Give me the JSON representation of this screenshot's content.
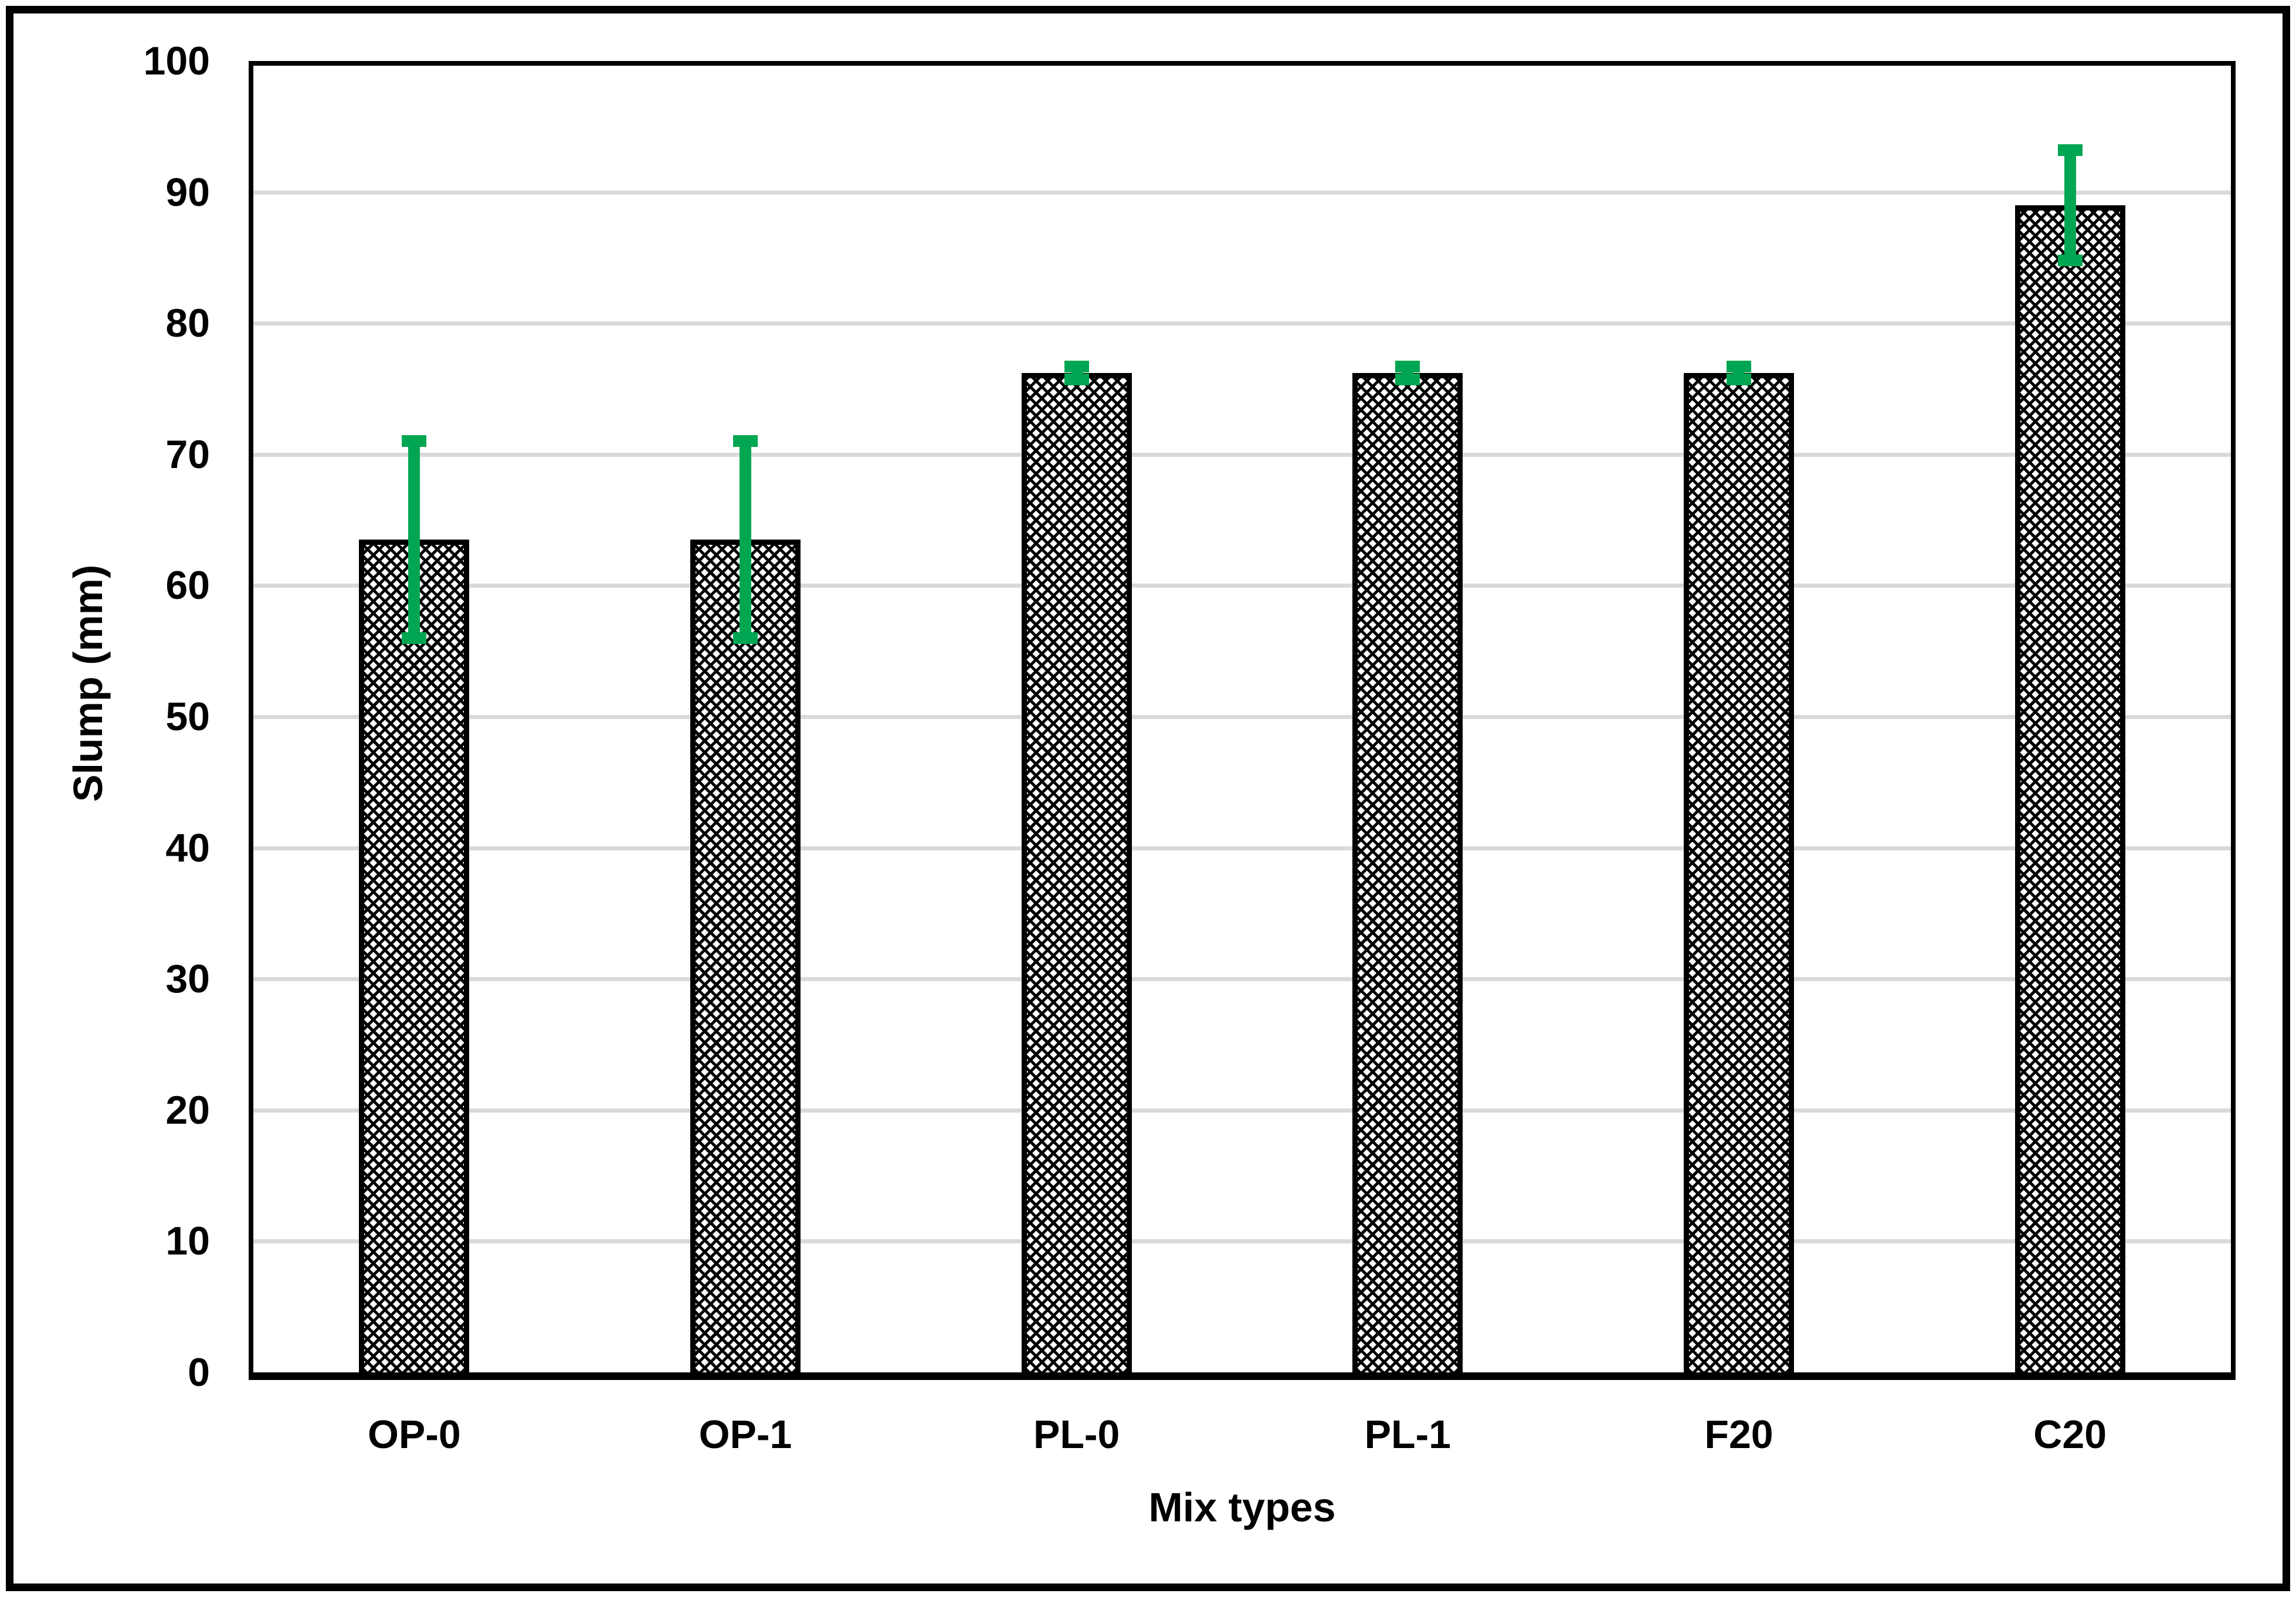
{
  "figure": {
    "background": "#FFFFFF",
    "frame_color": "#000000"
  },
  "chart_data": {
    "type": "bar",
    "title": "",
    "xlabel": "Mix types",
    "ylabel": "Slump (mm)",
    "categories": [
      "OP-0",
      "OP-1",
      "PL-0",
      "PL-1",
      "F20",
      "C20"
    ],
    "values": [
      63.5,
      63.5,
      76.2,
      76.2,
      76.2,
      89
    ],
    "error_plus": [
      7.5,
      7.5,
      0.5,
      0.5,
      0.5,
      4.2
    ],
    "error_minus": [
      7.5,
      7.5,
      0.5,
      0.5,
      0.5,
      4.2
    ],
    "ylim": [
      0,
      100
    ],
    "ytick_step": 10,
    "yticks": [
      0,
      10,
      20,
      30,
      40,
      50,
      60,
      70,
      80,
      90,
      100
    ],
    "grid": "horizontal",
    "legend_position": "none",
    "bar_style": "white fill with black cross-hatch diamond pattern, black outline",
    "bar_outline_color": "#000000",
    "error_bar_color": "#00A651",
    "gridline_color": "#D9D9D9",
    "axis_color": "#000000",
    "text_color": "#000000"
  }
}
